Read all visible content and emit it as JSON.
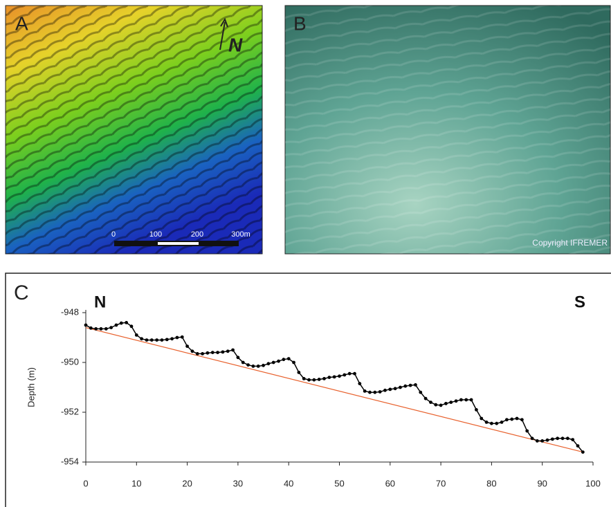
{
  "panel_a": {
    "label": "A",
    "north": "N",
    "scale_labels": [
      "0",
      "100",
      "200",
      "300m"
    ]
  },
  "panel_b": {
    "label": "B",
    "credit": "Copyright IFREMER"
  },
  "chart_data": {
    "type": "line",
    "panel_label": "C",
    "annotations": [
      "N",
      "S"
    ],
    "y_label": "Depth (m)",
    "xlim": [
      0,
      100
    ],
    "xticks": [
      0,
      10,
      20,
      30,
      40,
      50,
      60,
      70,
      80,
      90,
      100
    ],
    "ylim": [
      -954,
      -948
    ],
    "yticks": [
      -948,
      -950,
      -952,
      -954
    ],
    "series": [
      {
        "color": "#000000",
        "markers": true,
        "x": [
          0,
          1,
          2,
          3,
          4,
          5,
          6,
          7,
          8,
          9,
          10,
          11,
          12,
          13,
          14,
          15,
          16,
          17,
          18,
          19,
          20,
          21,
          22,
          23,
          24,
          25,
          26,
          27,
          28,
          29,
          30,
          31,
          32,
          33,
          34,
          35,
          36,
          37,
          38,
          39,
          40,
          41,
          42,
          43,
          44,
          45,
          46,
          47,
          48,
          49,
          50,
          51,
          52,
          53,
          54,
          55,
          56,
          57,
          58,
          59,
          60,
          61,
          62,
          63,
          64,
          65,
          66,
          67,
          68,
          69,
          70,
          71,
          72,
          73,
          74,
          75,
          76,
          77,
          78,
          79,
          80,
          81,
          82,
          83,
          84,
          85,
          86,
          87,
          88,
          89,
          90,
          91,
          92,
          93,
          94,
          95,
          96,
          97,
          98
        ],
        "values": [
          -948.5,
          -948.62,
          -948.65,
          -948.65,
          -948.65,
          -948.6,
          -948.5,
          -948.42,
          -948.4,
          -948.55,
          -948.9,
          -949.05,
          -949.1,
          -949.1,
          -949.1,
          -949.1,
          -949.08,
          -949.05,
          -949.0,
          -948.98,
          -949.35,
          -949.55,
          -949.65,
          -949.65,
          -949.62,
          -949.6,
          -949.6,
          -949.58,
          -949.55,
          -949.5,
          -949.8,
          -950.0,
          -950.1,
          -950.15,
          -950.15,
          -950.12,
          -950.05,
          -950.0,
          -949.95,
          -949.88,
          -949.85,
          -950.0,
          -950.4,
          -950.65,
          -950.7,
          -950.7,
          -950.68,
          -950.65,
          -950.6,
          -950.58,
          -950.55,
          -950.5,
          -950.45,
          -950.45,
          -950.85,
          -951.15,
          -951.2,
          -951.2,
          -951.18,
          -951.12,
          -951.08,
          -951.05,
          -951.0,
          -950.95,
          -950.92,
          -950.9,
          -951.2,
          -951.45,
          -951.6,
          -951.7,
          -951.72,
          -951.65,
          -951.6,
          -951.55,
          -951.5,
          -951.5,
          -951.5,
          -951.9,
          -952.25,
          -952.4,
          -952.45,
          -952.45,
          -952.4,
          -952.3,
          -952.28,
          -952.25,
          -952.3,
          -952.75,
          -953.05,
          -953.15,
          -953.15,
          -953.12,
          -953.08,
          -953.05,
          -953.05,
          -953.05,
          -953.1,
          -953.35,
          -953.6
        ]
      },
      {
        "color": "#e8602c",
        "markers": false,
        "x": [
          0,
          98
        ],
        "values": [
          -948.6,
          -953.6
        ]
      }
    ]
  }
}
